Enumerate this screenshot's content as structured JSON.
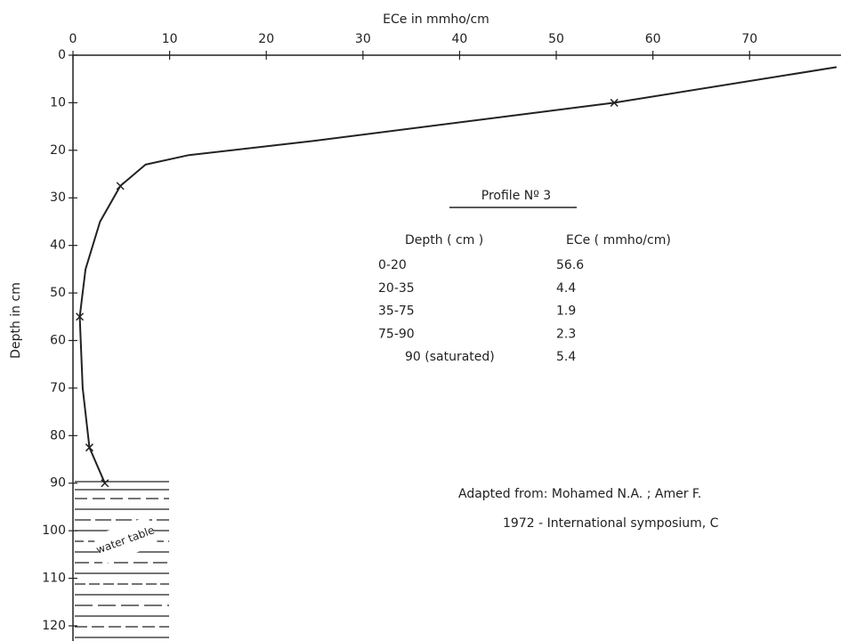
{
  "chart_data": {
    "type": "line",
    "x_label": "ECe  in  mmho/cm",
    "y_label": "Depth  in  cm",
    "xlim": [
      0,
      79
    ],
    "ylim": [
      0,
      123
    ],
    "xticks": [
      0,
      10,
      20,
      30,
      40,
      50,
      60,
      70
    ],
    "yticks": [
      0,
      10,
      20,
      30,
      40,
      50,
      60,
      70,
      80,
      90,
      100,
      110,
      120
    ],
    "color": "#222222",
    "curve": {
      "x": [
        79,
        56,
        25,
        12,
        7.5,
        4.9,
        2.8,
        1.3,
        0.7,
        1,
        1.7,
        3.3
      ],
      "values": [
        2.5,
        10,
        18,
        21,
        23,
        27.5,
        35,
        45,
        55,
        70,
        82.5,
        90
      ]
    },
    "markers": {
      "x": [
        56,
        4.9,
        0.7,
        1.7,
        3.3
      ],
      "values": [
        10,
        27.5,
        55,
        82.5,
        90
      ]
    },
    "water_table_label": "water table",
    "table": {
      "title": "Profile Nº 3",
      "headers": [
        "Depth ( cm )",
        "ECe ( mmho/cm)"
      ],
      "rows": [
        [
          "0-20",
          "56.6"
        ],
        [
          "20-35",
          "4.4"
        ],
        [
          "35-75",
          "1.9"
        ],
        [
          "75-90",
          "2.3"
        ],
        [
          "90 (saturated)",
          "5.4"
        ]
      ]
    },
    "annotations": [
      "Adapted from:  Mohamed N.A. ; Amer F.",
      "1972 - International symposium, C"
    ]
  }
}
